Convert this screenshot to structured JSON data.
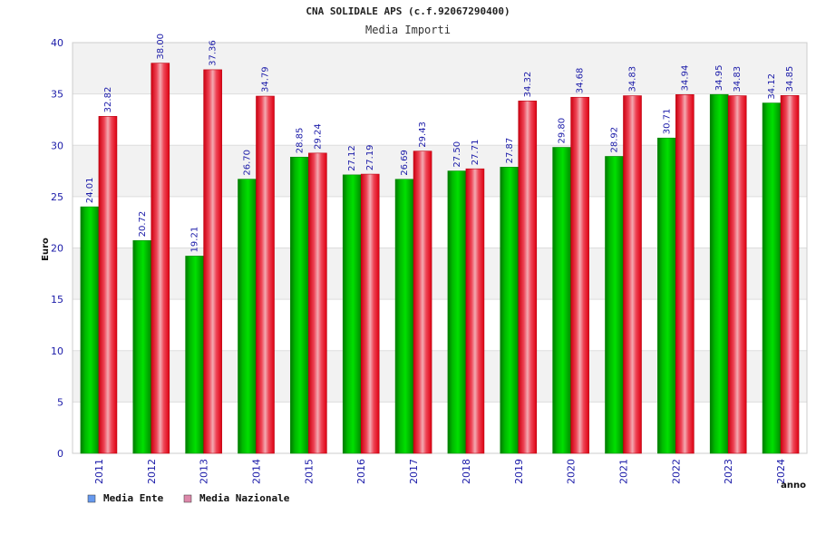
{
  "chart_data": {
    "type": "bar",
    "title": "CNA SOLIDALE APS (c.f.92067290400)",
    "subtitle": "Media Importi",
    "xlabel": "anno",
    "ylabel": "Euro",
    "ylim": [
      0,
      40
    ],
    "yticks": [
      0,
      5,
      10,
      15,
      20,
      25,
      30,
      35,
      40
    ],
    "categories": [
      "2011",
      "2012",
      "2013",
      "2014",
      "2015",
      "2016",
      "2017",
      "2018",
      "2019",
      "2020",
      "2021",
      "2022",
      "2023",
      "2024"
    ],
    "series": [
      {
        "name": "Media Ente",
        "color": "#00cc00",
        "legend_color": "#6699ee",
        "values": [
          24.01,
          20.72,
          19.21,
          26.7,
          28.85,
          27.12,
          26.69,
          27.5,
          27.87,
          29.8,
          28.92,
          30.71,
          34.95,
          34.12
        ],
        "labels": [
          "24.01",
          "20.72",
          "19.21",
          "26.70",
          "28.85",
          "27.12",
          "26.69",
          "27.50",
          "27.87",
          "29.80",
          "28.92",
          "30.71",
          "34.95",
          "34.12"
        ]
      },
      {
        "name": "Media Nazionale",
        "color": "#ee1122",
        "legend_color": "#dd88aa",
        "values": [
          32.82,
          38.0,
          37.36,
          34.79,
          29.24,
          27.19,
          29.43,
          27.71,
          34.32,
          34.68,
          34.83,
          34.94,
          34.83,
          34.85
        ],
        "labels": [
          "32.82",
          "38.00",
          "37.36",
          "34.79",
          "29.24",
          "27.19",
          "29.43",
          "27.71",
          "34.32",
          "34.68",
          "34.83",
          "34.94",
          "34.83",
          "34.85"
        ]
      }
    ],
    "grid": true,
    "legend_position": "bottom-left"
  }
}
